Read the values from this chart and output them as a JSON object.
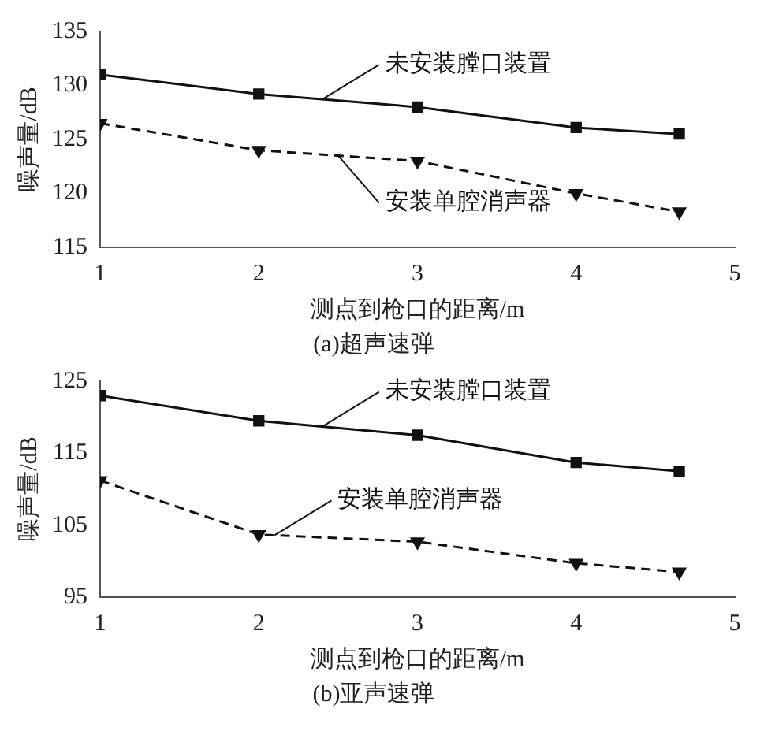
{
  "chart_data": [
    {
      "type": "line",
      "title": "(a)超声速弹",
      "xlabel": "测点到枪口的距离/m",
      "ylabel": "噪声量/dB",
      "x": [
        1,
        2,
        3,
        4,
        4.65
      ],
      "xlim": [
        1,
        5
      ],
      "xticks": [
        1,
        2,
        3,
        4,
        5
      ],
      "ylim": [
        115,
        135
      ],
      "yticks": [
        115,
        120,
        125,
        130,
        135
      ],
      "grid": false,
      "legend": false,
      "series": [
        {
          "name": "未安装膛口装置",
          "color": "#111111",
          "marker": "square",
          "line_style": "solid",
          "values": [
            131,
            129.2,
            128,
            126.1,
            125.5
          ]
        },
        {
          "name": "安装单腔消声器",
          "color": "#111111",
          "marker": "triangle",
          "line_style": "dashed",
          "values": [
            126.5,
            124,
            123,
            120,
            118.3
          ]
        }
      ]
    },
    {
      "type": "line",
      "title": "(b)亚声速弹",
      "xlabel": "测点到枪口的距离/m",
      "ylabel": "噪声量/dB",
      "x": [
        1,
        2,
        3,
        4,
        4.65
      ],
      "xlim": [
        1,
        5
      ],
      "xticks": [
        1,
        2,
        3,
        4,
        5
      ],
      "ylim": [
        95,
        125
      ],
      "yticks": [
        95,
        105,
        115,
        125
      ],
      "grid": false,
      "legend": false,
      "series": [
        {
          "name": "未安装膛口装置",
          "color": "#111111",
          "marker": "square",
          "line_style": "solid",
          "values": [
            123,
            119.5,
            117.5,
            113.7,
            112.5
          ]
        },
        {
          "name": "安装单腔消声器",
          "color": "#111111",
          "marker": "triangle",
          "line_style": "dashed",
          "values": [
            111.2,
            103.7,
            102.7,
            99.7,
            98.5
          ]
        }
      ]
    }
  ]
}
